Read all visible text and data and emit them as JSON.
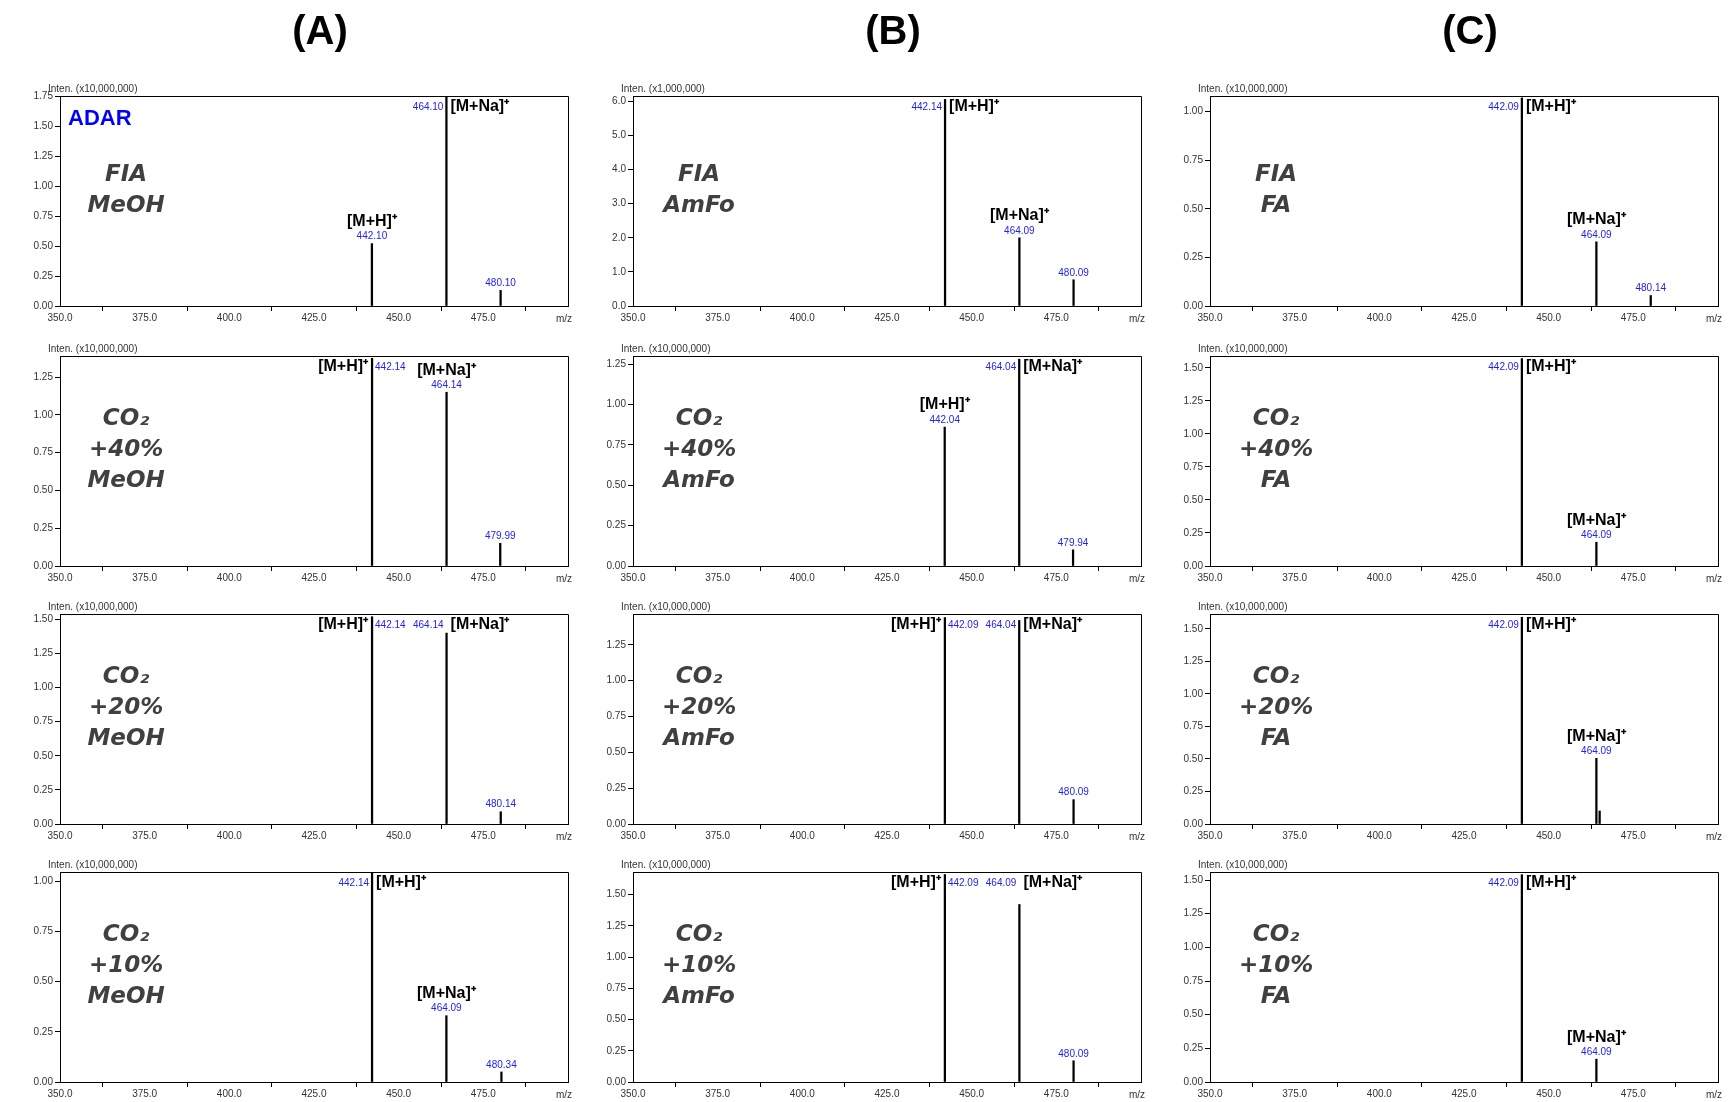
{
  "chart_data": [
    {
      "type": "bar",
      "title": "(A)",
      "subtitle": "ADAR",
      "ylabel": "Inten. (x10,000,000)",
      "xlabel": "m/z",
      "xlim": [
        350,
        500
      ],
      "xticks": [
        {
          "value": 350,
          "label": "350.0"
        },
        {
          "value": 375,
          "label": "375.0"
        },
        {
          "value": 400,
          "label": "400.0"
        },
        {
          "value": 425,
          "label": "425.0"
        },
        {
          "value": 450,
          "label": "450.0"
        },
        {
          "value": 475,
          "label": "475.0"
        }
      ],
      "ylim": [
        0,
        1.75
      ],
      "yticks": [
        {
          "value": 0,
          "label": "0.00"
        },
        {
          "value": 0.25,
          "label": "0.25"
        },
        {
          "value": 0.5,
          "label": "0.50"
        },
        {
          "value": 0.75,
          "label": "0.75"
        },
        {
          "value": 1,
          "label": "1.00"
        },
        {
          "value": 1.25,
          "label": "1.25"
        },
        {
          "value": 1.5,
          "label": "1.50"
        },
        {
          "value": 1.75,
          "label": "1.75"
        }
      ],
      "series": [
        {
          "color": "#000000",
          "x": [
            442.1,
            464.1,
            480.1
          ],
          "values": [
            0.52,
            1.74,
            0.13
          ]
        }
      ],
      "annotations": [
        "FIA\nMeOH",
        {
          "text": "442.10",
          "x": 442.1,
          "y": 0.52
        },
        {
          "text": "[M+H]⁺",
          "x": 442.1,
          "y": 0.52
        },
        {
          "text": "464.10",
          "x": 464.1,
          "y": 1.74
        },
        {
          "text": "[M+Na]⁺",
          "x": 464.1,
          "y": 1.74
        },
        {
          "text": "480.10",
          "x": 480.1,
          "y": 0.13
        }
      ]
    },
    {
      "type": "bar",
      "title": "(B)",
      "ylabel": "Inten. (x1,000,000)",
      "xlabel": "m/z",
      "xlim": [
        350,
        500
      ],
      "xticks": [
        {
          "value": 350,
          "label": "350.0"
        },
        {
          "value": 375,
          "label": "375.0"
        },
        {
          "value": 400,
          "label": "400.0"
        },
        {
          "value": 425,
          "label": "425.0"
        },
        {
          "value": 450,
          "label": "450.0"
        },
        {
          "value": 475,
          "label": "475.0"
        }
      ],
      "ylim": [
        0,
        6.16
      ],
      "yticks": [
        {
          "value": 0,
          "label": "0.0"
        },
        {
          "value": 1,
          "label": "1.0"
        },
        {
          "value": 2,
          "label": "2.0"
        },
        {
          "value": 3,
          "label": "3.0"
        },
        {
          "value": 4,
          "label": "4.0"
        },
        {
          "value": 5,
          "label": "5.0"
        },
        {
          "value": 6,
          "label": "6.0"
        }
      ],
      "series": [
        {
          "color": "#000000",
          "x": [
            442.14,
            464.09,
            480.09
          ],
          "values": [
            6.06,
            2.0,
            0.77
          ]
        }
      ],
      "annotations": [
        "FIA\nAmFo",
        {
          "text": "442.14",
          "x": 442.14,
          "y": 6.06
        },
        {
          "text": "[M+H]⁺",
          "x": 442.14,
          "y": 6.06
        },
        {
          "text": "464.09",
          "x": 464.09,
          "y": 2.0
        },
        {
          "text": "[M+Na]⁺",
          "x": 464.09,
          "y": 2.0
        },
        {
          "text": "480.09",
          "x": 480.09,
          "y": 0.77
        }
      ]
    },
    {
      "type": "bar",
      "title": "(C)",
      "ylabel": "Inten. (x10,000,000)",
      "xlabel": "m/z",
      "xlim": [
        350,
        500
      ],
      "xticks": [
        {
          "value": 350,
          "label": "350.0"
        },
        {
          "value": 375,
          "label": "375.0"
        },
        {
          "value": 400,
          "label": "400.0"
        },
        {
          "value": 425,
          "label": "425.0"
        },
        {
          "value": 450,
          "label": "450.0"
        },
        {
          "value": 475,
          "label": "475.0"
        }
      ],
      "ylim": [
        0,
        1.08
      ],
      "yticks": [
        {
          "value": 0,
          "label": "0.00"
        },
        {
          "value": 0.25,
          "label": "0.25"
        },
        {
          "value": 0.5,
          "label": "0.50"
        },
        {
          "value": 0.75,
          "label": "0.75"
        },
        {
          "value": 1,
          "label": "1.00"
        }
      ],
      "series": [
        {
          "color": "#000000",
          "x": [
            442.09,
            464.09,
            480.14
          ],
          "values": [
            1.07,
            0.33,
            0.054
          ]
        }
      ],
      "annotations": [
        "FIA\nFA",
        {
          "text": "442.09",
          "x": 442.09,
          "y": 1.07
        },
        {
          "text": "[M+H]⁺",
          "x": 442.09,
          "y": 1.07
        },
        {
          "text": "464.09",
          "x": 464.09,
          "y": 0.33
        },
        {
          "text": "[M+Na]⁺",
          "x": 464.09,
          "y": 0.33
        },
        {
          "text": "480.14",
          "x": 480.14,
          "y": 0.054
        }
      ]
    },
    {
      "type": "bar",
      "ylabel": "Inten. (x10,000,000)",
      "xlabel": "m/z",
      "xlim": [
        350,
        500
      ],
      "xticks": [
        {
          "value": 350,
          "label": "350.0"
        },
        {
          "value": 375,
          "label": "375.0"
        },
        {
          "value": 400,
          "label": "400.0"
        },
        {
          "value": 425,
          "label": "425.0"
        },
        {
          "value": 450,
          "label": "450.0"
        },
        {
          "value": 475,
          "label": "475.0"
        }
      ],
      "ylim": [
        0,
        1.39
      ],
      "yticks": [
        {
          "value": 0,
          "label": "0.00"
        },
        {
          "value": 0.25,
          "label": "0.25"
        },
        {
          "value": 0.5,
          "label": "0.50"
        },
        {
          "value": 0.75,
          "label": "0.75"
        },
        {
          "value": 1,
          "label": "1.00"
        },
        {
          "value": 1.25,
          "label": "1.25"
        }
      ],
      "series": [
        {
          "color": "#000000",
          "x": [
            442.14,
            464.14,
            479.99
          ],
          "values": [
            1.375,
            1.15,
            0.15
          ]
        }
      ],
      "annotations": [
        "CO₂\n+40%\nMeOH",
        {
          "text": "442.14",
          "x": 442.14,
          "y": 1.375
        },
        {
          "text": "[M+H]⁺",
          "x": 442.14,
          "y": 1.375
        },
        {
          "text": "464.14",
          "x": 464.14,
          "y": 1.15
        },
        {
          "text": "[M+Na]⁺",
          "x": 464.14,
          "y": 1.15
        },
        {
          "text": "479.99",
          "x": 479.99,
          "y": 0.15
        }
      ]
    },
    {
      "type": "bar",
      "ylabel": "Inten. (x10,000,000)",
      "xlabel": "m/z",
      "xlim": [
        350,
        500
      ],
      "xticks": [
        {
          "value": 350,
          "label": "350.0"
        },
        {
          "value": 375,
          "label": "375.0"
        },
        {
          "value": 400,
          "label": "400.0"
        },
        {
          "value": 425,
          "label": "425.0"
        },
        {
          "value": 450,
          "label": "450.0"
        },
        {
          "value": 475,
          "label": "475.0"
        }
      ],
      "ylim": [
        0,
        1.3
      ],
      "yticks": [
        {
          "value": 0,
          "label": "0.00"
        },
        {
          "value": 0.25,
          "label": "0.25"
        },
        {
          "value": 0.5,
          "label": "0.50"
        },
        {
          "value": 0.75,
          "label": "0.75"
        },
        {
          "value": 1,
          "label": "1.00"
        },
        {
          "value": 1.25,
          "label": "1.25"
        }
      ],
      "series": [
        {
          "color": "#000000",
          "x": [
            442.04,
            464.04,
            479.94
          ],
          "values": [
            0.86,
            1.28,
            0.1
          ]
        }
      ],
      "annotations": [
        "CO₂\n+40%\nAmFo",
        {
          "text": "442.04",
          "x": 442.04,
          "y": 0.86
        },
        {
          "text": "[M+H]⁺",
          "x": 442.04,
          "y": 0.86
        },
        {
          "text": "464.04",
          "x": 464.04,
          "y": 1.28
        },
        {
          "text": "[M+Na]⁺",
          "x": 464.04,
          "y": 1.28
        },
        {
          "text": "479.94",
          "x": 479.94,
          "y": 0.1
        }
      ]
    },
    {
      "type": "bar",
      "ylabel": "Inten. (x10,000,000)",
      "xlabel": "m/z",
      "xlim": [
        350,
        500
      ],
      "xticks": [
        {
          "value": 350,
          "label": "350.0"
        },
        {
          "value": 375,
          "label": "375.0"
        },
        {
          "value": 400,
          "label": "400.0"
        },
        {
          "value": 425,
          "label": "425.0"
        },
        {
          "value": 450,
          "label": "450.0"
        },
        {
          "value": 475,
          "label": "475.0"
        }
      ],
      "ylim": [
        0,
        1.59
      ],
      "yticks": [
        {
          "value": 0,
          "label": "0.00"
        },
        {
          "value": 0.25,
          "label": "0.25"
        },
        {
          "value": 0.5,
          "label": "0.50"
        },
        {
          "value": 0.75,
          "label": "0.75"
        },
        {
          "value": 1,
          "label": "1.00"
        },
        {
          "value": 1.25,
          "label": "1.25"
        },
        {
          "value": 1.5,
          "label": "1.50"
        }
      ],
      "series": [
        {
          "color": "#000000",
          "x": [
            442.09,
            464.09
          ],
          "values": [
            1.57,
            0.18
          ]
        }
      ],
      "annotations": [
        "CO₂\n+40%\nFA",
        {
          "text": "442.09",
          "x": 442.09,
          "y": 1.57
        },
        {
          "text": "[M+H]⁺",
          "x": 442.09,
          "y": 1.57
        },
        {
          "text": "464.09",
          "x": 464.09,
          "y": 0.18
        },
        {
          "text": "[M+Na]⁺",
          "x": 464.09,
          "y": 0.18
        }
      ]
    },
    {
      "type": "bar",
      "ylabel": "Inten. (x10,000,000)",
      "xlabel": "m/z",
      "xlim": [
        350,
        500
      ],
      "xticks": [
        {
          "value": 350,
          "label": "350.0"
        },
        {
          "value": 375,
          "label": "375.0"
        },
        {
          "value": 400,
          "label": "400.0"
        },
        {
          "value": 425,
          "label": "425.0"
        },
        {
          "value": 450,
          "label": "450.0"
        },
        {
          "value": 475,
          "label": "475.0"
        }
      ],
      "ylim": [
        0,
        1.54
      ],
      "yticks": [
        {
          "value": 0,
          "label": "0.00"
        },
        {
          "value": 0.25,
          "label": "0.25"
        },
        {
          "value": 0.5,
          "label": "0.50"
        },
        {
          "value": 0.75,
          "label": "0.75"
        },
        {
          "value": 1,
          "label": "1.00"
        },
        {
          "value": 1.25,
          "label": "1.25"
        },
        {
          "value": 1.5,
          "label": "1.50"
        }
      ],
      "series": [
        {
          "color": "#000000",
          "x": [
            442.14,
            464.14,
            480.14
          ],
          "values": [
            1.52,
            1.4,
            0.09
          ]
        }
      ],
      "annotations": [
        "CO₂\n+20%\nMeOH",
        {
          "text": "442.14",
          "x": 442.14,
          "y": 1.52
        },
        {
          "text": "[M+H]⁺",
          "x": 442.14,
          "y": 1.52
        },
        {
          "text": "464.14",
          "x": 464.14,
          "y": 1.4
        },
        {
          "text": "[M+Na]⁺",
          "x": 464.14,
          "y": 1.4
        },
        {
          "text": "480.14",
          "x": 480.14,
          "y": 0.09
        }
      ]
    },
    {
      "type": "bar",
      "ylabel": "Inten. (x10,000,000)",
      "xlabel": "m/z",
      "xlim": [
        350,
        500
      ],
      "xticks": [
        {
          "value": 350,
          "label": "350.0"
        },
        {
          "value": 375,
          "label": "375.0"
        },
        {
          "value": 400,
          "label": "400.0"
        },
        {
          "value": 425,
          "label": "425.0"
        },
        {
          "value": 450,
          "label": "450.0"
        },
        {
          "value": 475,
          "label": "475.0"
        }
      ],
      "ylim": [
        0,
        1.465
      ],
      "yticks": [
        {
          "value": 0,
          "label": "0.00"
        },
        {
          "value": 0.25,
          "label": "0.25"
        },
        {
          "value": 0.5,
          "label": "0.50"
        },
        {
          "value": 0.75,
          "label": "0.75"
        },
        {
          "value": 1,
          "label": "1.00"
        },
        {
          "value": 1.25,
          "label": "1.25"
        }
      ],
      "series": [
        {
          "color": "#000000",
          "x": [
            442.09,
            464.04,
            480.09
          ],
          "values": [
            1.44,
            1.42,
            0.17
          ]
        }
      ],
      "annotations": [
        "CO₂\n+20%\nAmFo",
        {
          "text": "442.09",
          "x": 442.09,
          "y": 1.44
        },
        {
          "text": "[M+H]⁺",
          "x": 442.09,
          "y": 1.44
        },
        {
          "text": "464.04",
          "x": 464.04,
          "y": 1.42
        },
        {
          "text": "[M+Na]⁺",
          "x": 464.04,
          "y": 1.42
        },
        {
          "text": "480.09",
          "x": 480.09,
          "y": 0.17
        }
      ]
    },
    {
      "type": "bar",
      "ylabel": "Inten. (x10,000,000)",
      "xlabel": "m/z",
      "xlim": [
        350,
        500
      ],
      "xticks": [
        {
          "value": 350,
          "label": "350.0"
        },
        {
          "value": 375,
          "label": "375.0"
        },
        {
          "value": 400,
          "label": "400.0"
        },
        {
          "value": 425,
          "label": "425.0"
        },
        {
          "value": 450,
          "label": "450.0"
        },
        {
          "value": 475,
          "label": "475.0"
        }
      ],
      "ylim": [
        0,
        1.615
      ],
      "yticks": [
        {
          "value": 0,
          "label": "0.00"
        },
        {
          "value": 0.25,
          "label": "0.25"
        },
        {
          "value": 0.5,
          "label": "0.50"
        },
        {
          "value": 0.75,
          "label": "0.75"
        },
        {
          "value": 1,
          "label": "1.00"
        },
        {
          "value": 1.25,
          "label": "1.25"
        },
        {
          "value": 1.5,
          "label": "1.50"
        }
      ],
      "series": [
        {
          "color": "#000000",
          "x": [
            442.09,
            464.09,
            465.05
          ],
          "values": [
            1.59,
            0.505,
            0.1
          ]
        }
      ],
      "annotations": [
        "CO₂\n+20%\nFA",
        {
          "text": "442.09",
          "x": 442.09,
          "y": 1.59
        },
        {
          "text": "[M+H]⁺",
          "x": 442.09,
          "y": 1.59
        },
        {
          "text": "464.09",
          "x": 464.09,
          "y": 0.505
        },
        {
          "text": "[M+Na]⁺",
          "x": 464.09,
          "y": 0.505
        }
      ]
    },
    {
      "type": "bar",
      "ylabel": "Inten. (x10,000,000)",
      "xlabel": "m/z",
      "xlim": [
        350,
        500
      ],
      "xticks": [
        {
          "value": 350,
          "label": "350.0"
        },
        {
          "value": 375,
          "label": "375.0"
        },
        {
          "value": 400,
          "label": "400.0"
        },
        {
          "value": 425,
          "label": "425.0"
        },
        {
          "value": 450,
          "label": "450.0"
        },
        {
          "value": 475,
          "label": "475.0"
        }
      ],
      "ylim": [
        0,
        1.045
      ],
      "yticks": [
        {
          "value": 0,
          "label": "0.00"
        },
        {
          "value": 0.25,
          "label": "0.25"
        },
        {
          "value": 0.5,
          "label": "0.50"
        },
        {
          "value": 0.75,
          "label": "0.75"
        },
        {
          "value": 1,
          "label": "1.00"
        }
      ],
      "series": [
        {
          "color": "#000000",
          "x": [
            442.14,
            464.09,
            480.34
          ],
          "values": [
            1.04,
            0.33,
            0.05
          ]
        }
      ],
      "annotations": [
        "CO₂\n+10%\nMeOH",
        {
          "text": "442.14",
          "x": 442.14,
          "y": 1.04
        },
        {
          "text": "[M+H]⁺",
          "x": 442.14,
          "y": 1.04
        },
        {
          "text": "464.09",
          "x": 464.09,
          "y": 0.33
        },
        {
          "text": "[M+Na]⁺",
          "x": 464.09,
          "y": 0.33
        },
        {
          "text": "480.34",
          "x": 480.34,
          "y": 0.05
        }
      ]
    },
    {
      "type": "bar",
      "ylabel": "Inten. (x10,000,000)",
      "xlabel": "m/z",
      "xlim": [
        350,
        500
      ],
      "xticks": [
        {
          "value": 350,
          "label": "350.0"
        },
        {
          "value": 375,
          "label": "375.0"
        },
        {
          "value": 400,
          "label": "400.0"
        },
        {
          "value": 425,
          "label": "425.0"
        },
        {
          "value": 450,
          "label": "450.0"
        },
        {
          "value": 475,
          "label": "475.0"
        }
      ],
      "ylim": [
        0,
        1.68
      ],
      "yticks": [
        {
          "value": 0,
          "label": "0.00"
        },
        {
          "value": 0.25,
          "label": "0.25"
        },
        {
          "value": 0.5,
          "label": "0.50"
        },
        {
          "value": 0.75,
          "label": "0.75"
        },
        {
          "value": 1,
          "label": "1.00"
        },
        {
          "value": 1.25,
          "label": "1.25"
        },
        {
          "value": 1.5,
          "label": "1.50"
        }
      ],
      "series": [
        {
          "color": "#000000",
          "x": [
            442.09,
            464.09,
            480.09
          ],
          "values": [
            1.66,
            1.42,
            0.17
          ]
        }
      ],
      "annotations": [
        "CO₂\n+10%\nAmFo",
        {
          "text": "442.09",
          "x": 442.09,
          "y": 1.66
        },
        {
          "text": "[M+H]⁺",
          "x": 442.09,
          "y": 1.66
        },
        {
          "text": "464.09",
          "x": 464.09,
          "y": 1.42
        },
        {
          "text": "[M+Na]⁺",
          "x": 464.09,
          "y": 1.42
        },
        {
          "text": "480.09",
          "x": 480.09,
          "y": 0.17
        }
      ]
    },
    {
      "type": "bar",
      "ylabel": "Inten. (x10,000,000)",
      "xlabel": "m/z",
      "xlim": [
        350,
        500
      ],
      "xticks": [
        {
          "value": 350,
          "label": "350.0"
        },
        {
          "value": 375,
          "label": "375.0"
        },
        {
          "value": 400,
          "label": "400.0"
        },
        {
          "value": 425,
          "label": "425.0"
        },
        {
          "value": 450,
          "label": "450.0"
        },
        {
          "value": 475,
          "label": "475.0"
        }
      ],
      "ylim": [
        0,
        1.56
      ],
      "yticks": [
        {
          "value": 0,
          "label": "0.00"
        },
        {
          "value": 0.25,
          "label": "0.25"
        },
        {
          "value": 0.5,
          "label": "0.50"
        },
        {
          "value": 0.75,
          "label": "0.75"
        },
        {
          "value": 1,
          "label": "1.00"
        },
        {
          "value": 1.25,
          "label": "1.25"
        },
        {
          "value": 1.5,
          "label": "1.50"
        }
      ],
      "series": [
        {
          "color": "#000000",
          "x": [
            442.09,
            464.09
          ],
          "values": [
            1.54,
            0.17
          ]
        }
      ],
      "annotations": [
        "CO₂\n+10%\nFA",
        {
          "text": "442.09",
          "x": 442.09,
          "y": 1.54
        },
        {
          "text": "[M+H]⁺",
          "x": 442.09,
          "y": 1.54
        },
        {
          "text": "464.09",
          "x": 464.09,
          "y": 0.17
        },
        {
          "text": "[M+Na]⁺",
          "x": 464.09,
          "y": 0.17
        }
      ]
    }
  ]
}
